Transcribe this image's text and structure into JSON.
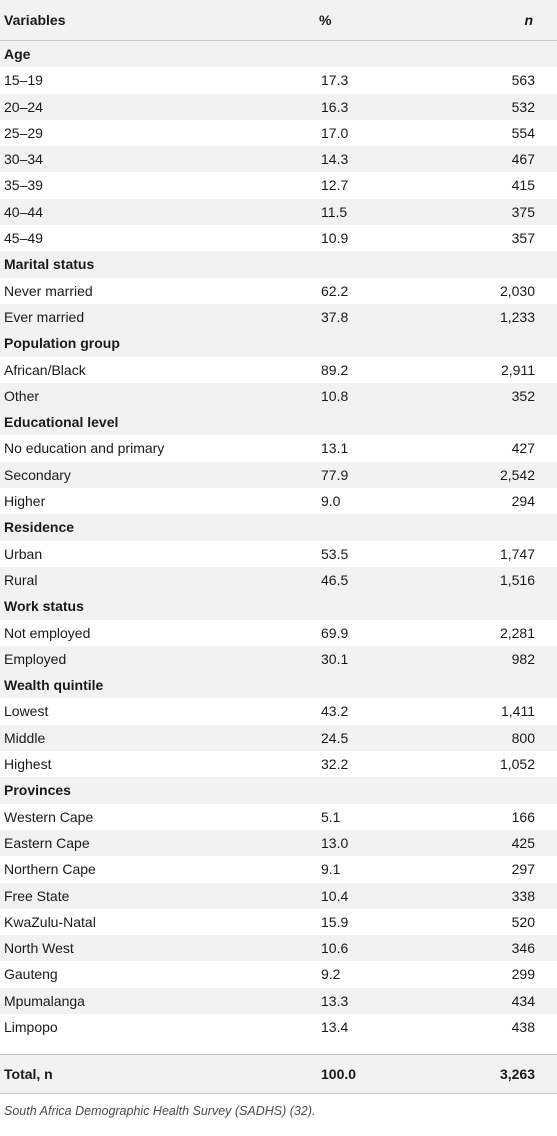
{
  "header": {
    "variables": "Variables",
    "percent": "%",
    "n": "n"
  },
  "groups": [
    {
      "label": "Age",
      "rows": [
        [
          "15–19",
          "17.3",
          "563"
        ],
        [
          "20–24",
          "16.3",
          "532"
        ],
        [
          "25–29",
          "17.0",
          "554"
        ],
        [
          "30–34",
          "14.3",
          "467"
        ],
        [
          "35–39",
          "12.7",
          "415"
        ],
        [
          "40–44",
          "11.5",
          "375"
        ],
        [
          "45–49",
          "10.9",
          "357"
        ]
      ]
    },
    {
      "label": "Marital status",
      "rows": [
        [
          "Never married",
          "62.2",
          "2,030"
        ],
        [
          "Ever married",
          "37.8",
          "1,233"
        ]
      ]
    },
    {
      "label": "Population group",
      "rows": [
        [
          "African/Black",
          "89.2",
          "2,911"
        ],
        [
          "Other",
          "10.8",
          "352"
        ]
      ]
    },
    {
      "label": "Educational level",
      "rows": [
        [
          "No education and primary",
          "13.1",
          "427"
        ],
        [
          "Secondary",
          "77.9",
          "2,542"
        ],
        [
          "Higher",
          "9.0",
          "294"
        ]
      ]
    },
    {
      "label": "Residence",
      "rows": [
        [
          "Urban",
          "53.5",
          "1,747"
        ],
        [
          "Rural",
          "46.5",
          "1,516"
        ]
      ]
    },
    {
      "label": "Work status",
      "rows": [
        [
          "Not employed",
          "69.9",
          "2,281"
        ],
        [
          "Employed",
          "30.1",
          "982"
        ]
      ]
    },
    {
      "label": "Wealth quintile",
      "rows": [
        [
          "Lowest",
          "43.2",
          "1,411"
        ],
        [
          "Middle",
          "24.5",
          "800"
        ],
        [
          "Highest",
          "32.2",
          "1,052"
        ]
      ]
    },
    {
      "label": "Provinces",
      "rows": [
        [
          "Western Cape",
          "5.1",
          "166"
        ],
        [
          "Eastern Cape",
          "13.0",
          "425"
        ],
        [
          "Northern Cape",
          "9.1",
          "297"
        ],
        [
          "Free State",
          "10.4",
          "338"
        ],
        [
          "KwaZulu-Natal",
          "15.9",
          "520"
        ],
        [
          "North West",
          "10.6",
          "346"
        ],
        [
          "Gauteng",
          "9.2",
          "299"
        ],
        [
          "Mpumalanga",
          "13.3",
          "434"
        ],
        [
          "Limpopo",
          "13.4",
          "438"
        ]
      ]
    }
  ],
  "total": {
    "label": "Total, n",
    "percent": "100.0",
    "n": "3,263"
  },
  "footnote": "South Africa Demographic Health Survey (SADHS) (32)."
}
